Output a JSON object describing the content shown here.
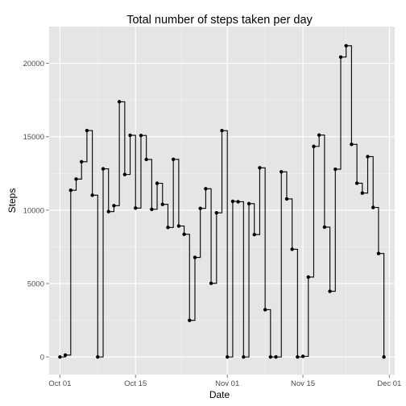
{
  "chart_data": {
    "type": "line",
    "step": true,
    "title": "Total number of steps taken per day",
    "xlabel": "Date",
    "ylabel": "Steps",
    "xlim": [
      "2012-09-29",
      "2012-12-02"
    ],
    "ylim": [
      -1200,
      22500
    ],
    "grid": true,
    "x_ticks": [
      {
        "date": "2012-10-01",
        "label": "Oct 01"
      },
      {
        "date": "2012-10-15",
        "label": "Oct 15"
      },
      {
        "date": "2012-11-01",
        "label": "Nov 01"
      },
      {
        "date": "2012-11-15",
        "label": "Nov 15"
      },
      {
        "date": "2012-12-01",
        "label": "Dec 01"
      }
    ],
    "y_ticks": [
      0,
      5000,
      10000,
      15000,
      20000
    ],
    "x": [
      "2012-10-01",
      "2012-10-02",
      "2012-10-03",
      "2012-10-04",
      "2012-10-05",
      "2012-10-06",
      "2012-10-07",
      "2012-10-08",
      "2012-10-09",
      "2012-10-10",
      "2012-10-11",
      "2012-10-12",
      "2012-10-13",
      "2012-10-14",
      "2012-10-15",
      "2012-10-16",
      "2012-10-17",
      "2012-10-18",
      "2012-10-19",
      "2012-10-20",
      "2012-10-21",
      "2012-10-22",
      "2012-10-23",
      "2012-10-24",
      "2012-10-25",
      "2012-10-26",
      "2012-10-27",
      "2012-10-28",
      "2012-10-29",
      "2012-10-30",
      "2012-10-31",
      "2012-11-01",
      "2012-11-02",
      "2012-11-03",
      "2012-11-04",
      "2012-11-05",
      "2012-11-06",
      "2012-11-07",
      "2012-11-08",
      "2012-11-09",
      "2012-11-10",
      "2012-11-11",
      "2012-11-12",
      "2012-11-13",
      "2012-11-14",
      "2012-11-15",
      "2012-11-16",
      "2012-11-17",
      "2012-11-18",
      "2012-11-19",
      "2012-11-20",
      "2012-11-21",
      "2012-11-22",
      "2012-11-23",
      "2012-11-24",
      "2012-11-25",
      "2012-11-26",
      "2012-11-27",
      "2012-11-28",
      "2012-11-29",
      "2012-11-30"
    ],
    "values": [
      0,
      126,
      11352,
      12116,
      13294,
      15420,
      11015,
      0,
      12811,
      9900,
      10304,
      17382,
      12426,
      15098,
      10139,
      15084,
      13452,
      10056,
      11829,
      10395,
      8821,
      13460,
      8918,
      8355,
      2492,
      6778,
      10119,
      11458,
      5018,
      9819,
      15414,
      0,
      10600,
      10571,
      0,
      10439,
      8334,
      12883,
      3219,
      0,
      0,
      12608,
      10765,
      7336,
      0,
      41,
      5441,
      14339,
      15110,
      8841,
      4472,
      12787,
      20427,
      21194,
      14478,
      11834,
      11162,
      13646,
      10183,
      7047,
      0
    ]
  }
}
